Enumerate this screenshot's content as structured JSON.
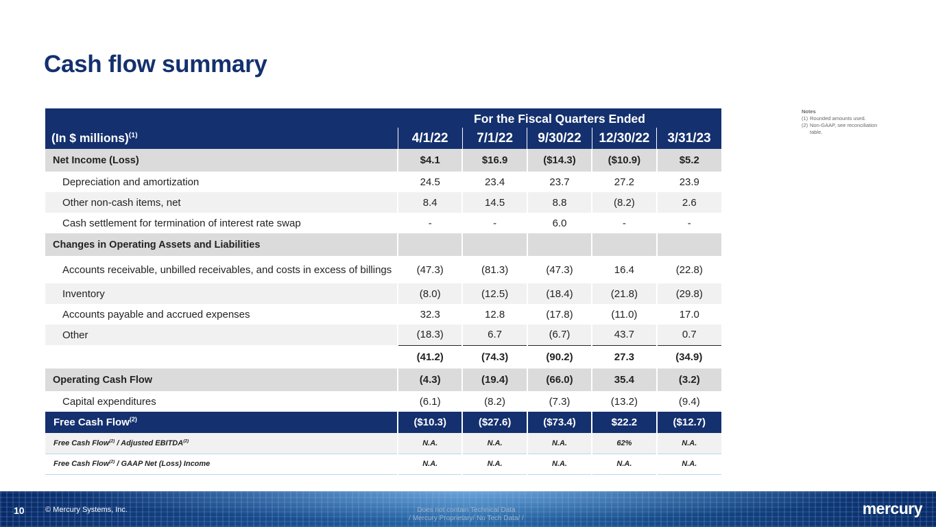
{
  "title": "Cash flow summary",
  "notes": {
    "heading": "Notes",
    "items": [
      {
        "num": "(1)",
        "text": "Rounded amounts used."
      },
      {
        "num": "(2)",
        "text": "Non-GAAP, see reconciliation table."
      }
    ]
  },
  "table": {
    "period_header": "For the Fiscal Quarters Ended",
    "unit_label": "(In $ millions)",
    "unit_note": "(1)",
    "columns": [
      "4/1/22",
      "7/1/22",
      "9/30/22",
      "12/30/22",
      "3/31/23"
    ],
    "rows": [
      {
        "label": "Net Income (Loss)",
        "values": [
          "$4.1",
          "$16.9",
          "($14.3)",
          "($10.9)",
          "$5.2"
        ]
      },
      {
        "label": "Depreciation and amortization",
        "values": [
          "24.5",
          "23.4",
          "23.7",
          "27.2",
          "23.9"
        ]
      },
      {
        "label": "Other non-cash items, net",
        "values": [
          "8.4",
          "14.5",
          "8.8",
          "(8.2)",
          "2.6"
        ]
      },
      {
        "label": "Cash settlement for termination of interest rate swap",
        "values": [
          "-",
          "-",
          "6.0",
          "-",
          "-"
        ]
      },
      {
        "label": "Changes in Operating Assets and Liabilities",
        "values": [
          "",
          "",
          "",
          "",
          ""
        ]
      },
      {
        "label": "Accounts receivable, unbilled receivables, and costs in excess of billings",
        "values": [
          "(47.3)",
          "(81.3)",
          "(47.3)",
          "16.4",
          "(22.8)"
        ]
      },
      {
        "label": "Inventory",
        "values": [
          "(8.0)",
          "(12.5)",
          "(18.4)",
          "(21.8)",
          "(29.8)"
        ]
      },
      {
        "label": "Accounts payable and accrued expenses",
        "values": [
          "32.3",
          "12.8",
          "(17.8)",
          "(11.0)",
          "17.0"
        ]
      },
      {
        "label": "Other",
        "values": [
          "(18.3)",
          "6.7",
          "(6.7)",
          "43.7",
          "0.7"
        ]
      },
      {
        "label": "",
        "values": [
          "(41.2)",
          "(74.3)",
          "(90.2)",
          "27.3",
          "(34.9)"
        ]
      },
      {
        "label": "Operating Cash Flow",
        "values": [
          "(4.3)",
          "(19.4)",
          "(66.0)",
          "35.4",
          "(3.2)"
        ]
      },
      {
        "label": "Capital expenditures",
        "values": [
          "(6.1)",
          "(8.2)",
          "(7.3)",
          "(13.2)",
          "(9.4)"
        ]
      },
      {
        "label": "Free Cash Flow",
        "sup": "(2)",
        "values": [
          "($10.3)",
          "($27.6)",
          "($73.4)",
          "$22.2",
          "($12.7)"
        ]
      },
      {
        "label_a": "Free Cash Flow",
        "sup_a": "(2)",
        "label_b": " / Adjusted EBITDA",
        "sup_b": "(2)",
        "values": [
          "N.A.",
          "N.A.",
          "N.A.",
          "62%",
          "N.A."
        ]
      },
      {
        "label_a": "Free Cash Flow",
        "sup_a": "(2)",
        "label_b": " / GAAP Net (Loss) Income",
        "values": [
          "N.A.",
          "N.A.",
          "N.A.",
          "N.A.",
          "N.A."
        ]
      }
    ]
  },
  "footer": {
    "page_number": "10",
    "copyright": "© Mercury Systems, Inc.",
    "disclaimer_1": "Does not contain Technical Data",
    "disclaimer_2": "/ Mercury Proprietary/ No  Tech Data/ /",
    "logo": "mercury"
  }
}
